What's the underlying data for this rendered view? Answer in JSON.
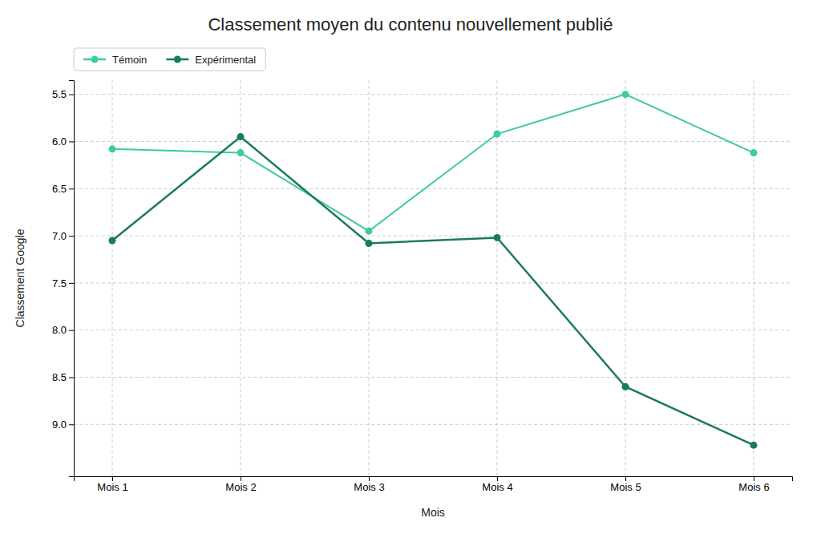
{
  "chart_data": {
    "type": "line",
    "title": "Classement moyen du contenu nouvellement publié",
    "xlabel": "Mois",
    "ylabel": "Classement Google",
    "categories": [
      "Mois 1",
      "Mois 2",
      "Mois 3",
      "Mois 4",
      "Mois 5",
      "Mois 6"
    ],
    "series": [
      {
        "name": "Témoin",
        "color": "#3ec9a7",
        "marker": "circle",
        "values": [
          6.08,
          6.12,
          6.95,
          5.92,
          5.5,
          6.12
        ]
      },
      {
        "name": "Expérimental",
        "color": "#1a7a5e",
        "marker": "circle",
        "values": [
          7.05,
          5.95,
          7.08,
          7.02,
          8.6,
          9.22
        ]
      }
    ],
    "ylim": [
      9.55,
      5.35
    ],
    "yticks": [
      5.5,
      {
        "value": 6.0,
        "label": "6.0"
      },
      6.5,
      {
        "value": 7.0,
        "label": "7.0"
      },
      7.5,
      {
        "value": 8.0,
        "label": "8.0"
      },
      8.5,
      {
        "value": 9.0,
        "label": "9.0"
      }
    ],
    "grid": true,
    "legend": "upper left"
  }
}
